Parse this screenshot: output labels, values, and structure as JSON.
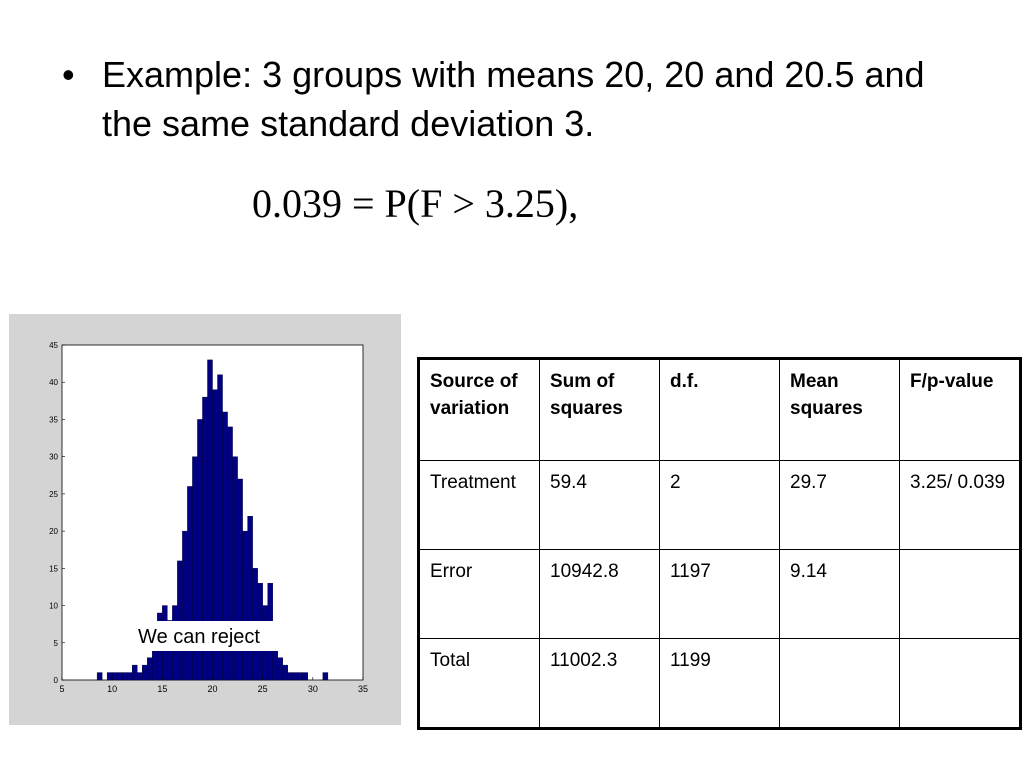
{
  "bullet": "Example: 3 groups with means 20, 20 and 20.5 and the same standard deviation 3.",
  "formula": "0.039 = P(F > 3.25),",
  "chart_data": {
    "type": "histogram",
    "color": "#000080",
    "annotation": "We can reject",
    "bins": [
      8.5,
      9,
      9.5,
      10,
      10.5,
      11,
      11.5,
      12,
      12.5,
      13,
      13.5,
      14,
      14.5,
      15,
      15.5,
      16,
      16.5,
      17,
      17.5,
      18,
      18.5,
      19,
      19.5,
      20,
      20.5,
      21,
      21.5,
      22,
      22.5,
      23,
      23.5,
      24,
      24.5,
      25,
      25.5,
      26,
      26.5,
      27,
      27.5,
      28,
      28.5,
      29,
      29.5,
      30,
      30.5,
      31,
      31.5
    ],
    "values": [
      1,
      0,
      1,
      1,
      1,
      1,
      1,
      2,
      1,
      2,
      3,
      5,
      9,
      10,
      8,
      10,
      16,
      20,
      26,
      30,
      35,
      38,
      43,
      39,
      41,
      36,
      34,
      30,
      27,
      20,
      22,
      15,
      13,
      10,
      13,
      5,
      3,
      2,
      1,
      1,
      1,
      1,
      0,
      0,
      0,
      1
    ],
    "xlim": [
      5,
      35
    ],
    "xticks": [
      5,
      10,
      15,
      20,
      25,
      30,
      35
    ],
    "ylim": [
      0,
      45
    ],
    "yticks": [
      0,
      5,
      10,
      15,
      20,
      25,
      30,
      35,
      40,
      45
    ]
  },
  "table": {
    "header": [
      "Source of variation",
      "Sum of squares",
      "d.f.",
      "Mean squares",
      "F/p-value"
    ],
    "rows": [
      [
        "Treatment",
        "59.4",
        "2",
        "29.7",
        "3.25/ 0.039"
      ],
      [
        "Error",
        "10942.8",
        "1197",
        "9.14"
      ],
      [
        "Total",
        "11002.3",
        "1199"
      ]
    ]
  }
}
